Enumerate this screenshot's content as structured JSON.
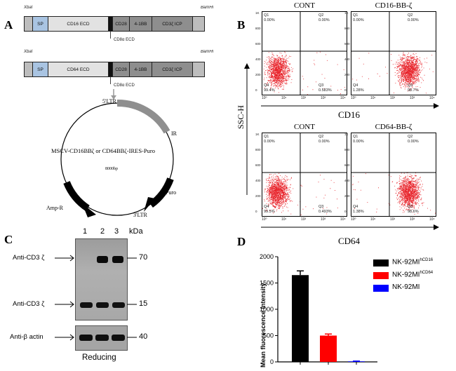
{
  "panels": {
    "a": "A",
    "b": "B",
    "c": "C",
    "d": "D"
  },
  "panel_a": {
    "restriction": {
      "left": "XbaI",
      "right": "BamHI"
    },
    "construct1": [
      "SP",
      "CD16 ECD",
      "CD28",
      "4-1BB",
      "CD3ζ ICP"
    ],
    "construct2": [
      "SP",
      "CD64 ECD",
      "CD28",
      "4-1BB",
      "CD3ζ ICP"
    ],
    "cd8_label": "CD8α ECD",
    "vector": {
      "ltr5": "5'LTR",
      "ir": "IR",
      "name": "MSCV-CD16BBζ or CD64BBζ-IRES-Puro",
      "size": "8000bp",
      "puro": "Puro",
      "ampr": "Amp-R",
      "ltr3": "3'LTR"
    }
  },
  "panel_b": {
    "y_axis": "SSC-H",
    "x_label_top": "CD16",
    "x_label_bottom": "CD64",
    "plots": [
      {
        "title": "CONT",
        "q1": "Q1",
        "q1v": "0.00%",
        "q2": "Q2",
        "q2v": "0.00%",
        "q4": "Q4",
        "q4v": "99.4%",
        "q3": "Q3",
        "q3v": "0.583%",
        "pos": "left"
      },
      {
        "title": "CD16-BB-ζ",
        "q1": "Q1",
        "q1v": "0.00%",
        "q2": "Q2",
        "q2v": "0.00%",
        "q4": "Q4",
        "q4v": "1.28%",
        "q3": "Q3",
        "q3v": "98.7%",
        "pos": "right"
      },
      {
        "title": "CONT",
        "q1": "Q1",
        "q1v": "0.00%",
        "q2": "Q2",
        "q2v": "0.00%",
        "q4": "Q4",
        "q4v": "99.5%",
        "q3": "Q3",
        "q3v": "0.493%",
        "pos": "left"
      },
      {
        "title": "CD64-BB-ζ",
        "q1": "Q1",
        "q1v": "0.00%",
        "q2": "Q2",
        "q2v": "0.00%",
        "q4": "Q4",
        "q4v": "1.38%",
        "q3": "Q3",
        "q3v": "98.6%",
        "pos": "right"
      }
    ],
    "y_ticks": [
      "1K",
      "800",
      "600",
      "400",
      "200",
      "0"
    ],
    "x_ticks": [
      "10⁰",
      "10¹",
      "10²",
      "10³",
      "10⁴"
    ]
  },
  "panel_c": {
    "lanes": [
      "1",
      "2",
      "3"
    ],
    "kda": "kDa",
    "row1_label": "Anti-CD3 ζ",
    "row1_mw": "70",
    "row2_label": "Anti-CD3 ζ",
    "row2_mw": "15",
    "row3_label": "Anti-β actin",
    "row3_mw": "40",
    "caption": "Reducing"
  },
  "chart_data": {
    "type": "bar",
    "ylabel": "Mean fluorescence intensity",
    "categories": [
      "NK-92MIhCD16",
      "NK-92MIhCD64",
      "NK-92MI"
    ],
    "values": [
      1650,
      500,
      10
    ],
    "errors": [
      80,
      30,
      5
    ],
    "ylim": [
      0,
      2000
    ],
    "yticks": [
      0,
      500,
      1000,
      1500,
      2000
    ],
    "colors": [
      "#000000",
      "#ff0000",
      "#0000ff"
    ],
    "legend": [
      {
        "base": "NK-92MI",
        "sup": "hCD16"
      },
      {
        "base": "NK-92MI",
        "sup": "hCD64"
      },
      {
        "base": "NK-92MI",
        "sup": ""
      }
    ]
  }
}
